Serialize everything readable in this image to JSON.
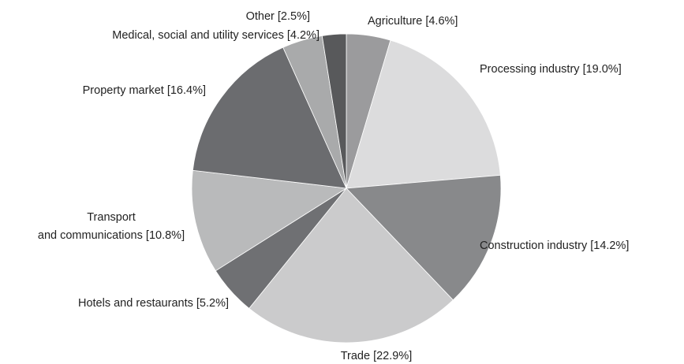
{
  "chart_data": {
    "type": "pie",
    "categories": [
      "Agriculture",
      "Processing industry",
      "Construction industry",
      "Trade",
      "Hotels and restaurants",
      [
        "Transport",
        "and communications"
      ],
      "Property market",
      "Medical, social and utility services",
      "Other"
    ],
    "values": [
      4.6,
      19.0,
      14.2,
      22.9,
      5.2,
      10.8,
      16.4,
      4.2,
      2.5
    ],
    "value_labels": [
      "[4.6%]",
      "[19.0%]",
      "[14.2%]",
      "[22.9%]",
      "[5.2%]",
      "[10.8%]",
      "[16.4%]",
      "[4.2%]",
      "[2.5%]"
    ],
    "colors": [
      "#9b9b9d",
      "#dcdcdd",
      "#88898b",
      "#cbcbcc",
      "#6f7073",
      "#b9babb",
      "#6b6c6f",
      "#a9aaab",
      "#58595b"
    ]
  }
}
